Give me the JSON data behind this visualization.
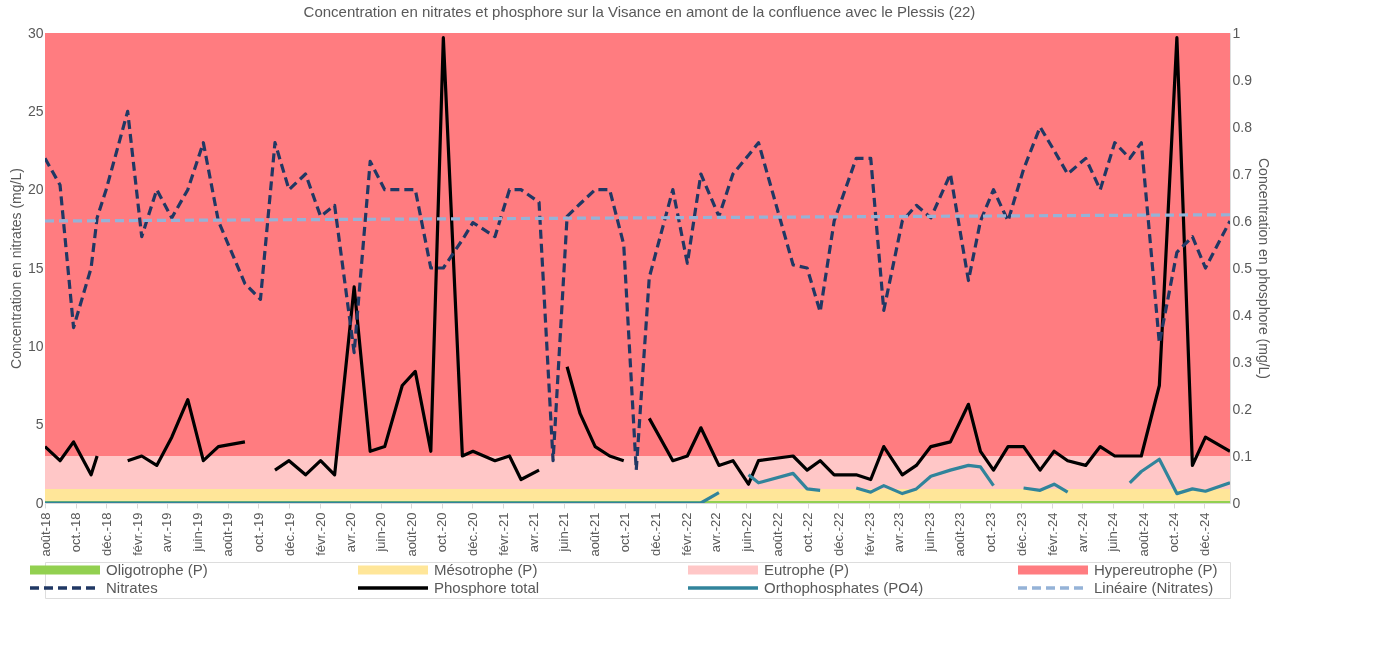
{
  "chart_data": {
    "type": "line",
    "title": "Concentration en nitrates et phosphore sur la Visance en amont de la confluence avec le Plessis (22)",
    "ylabel": "Concentration en nitrates (mg/L)",
    "y2label": "Concentration en phosphore (mg/L)",
    "x": [
      "2018-08-01",
      "2018-08-31",
      "2018-09-27",
      "2018-11-01",
      "2018-11-13",
      "2018-12-01",
      "2019-01-13",
      "2019-02-10",
      "2019-03-12",
      "2019-04-11",
      "2019-05-13",
      "2019-06-13",
      "2019-07-13",
      "2019-09-04",
      "2019-10-05",
      "2019-11-03",
      "2019-12-01",
      "2020-01-03",
      "2020-02-02",
      "2020-03-01",
      "2020-04-09",
      "2020-05-11",
      "2020-06-09",
      "2020-07-14",
      "2020-08-09",
      "2020-09-09",
      "2020-10-04",
      "2020-11-11",
      "2020-12-02",
      "2021-01-15",
      "2021-02-13",
      "2021-03-08",
      "2021-04-13",
      "2021-05-11",
      "2021-06-08",
      "2021-07-04",
      "2021-08-03",
      "2021-09-01",
      "2021-09-29",
      "2021-10-24",
      "2021-11-19",
      "2022-01-05",
      "2022-02-03",
      "2022-03-02",
      "2022-04-07",
      "2022-05-05",
      "2022-06-05",
      "2022-06-25",
      "2022-09-02",
      "2022-09-30",
      "2022-10-26",
      "2022-11-23",
      "2023-01-06",
      "2023-02-04",
      "2023-03-02",
      "2023-04-08",
      "2023-05-06",
      "2023-06-04",
      "2023-07-13",
      "2023-08-18",
      "2023-09-11",
      "2023-10-07",
      "2023-11-05",
      "2023-12-06",
      "2024-01-08",
      "2024-02-05",
      "2024-03-03",
      "2024-04-08",
      "2024-05-07",
      "2024-06-05",
      "2024-07-05",
      "2024-07-28",
      "2024-09-02",
      "2024-10-07",
      "2024-11-07",
      "2024-12-03",
      "2025-01-21"
    ],
    "series": [
      {
        "name": "Nitrates",
        "color": "#203864",
        "line_style": "dashed",
        "values": [
          22,
          20.3,
          11.2,
          15,
          18.2,
          20,
          25,
          17,
          20,
          18.2,
          20,
          23,
          18,
          14,
          13,
          23,
          20,
          21,
          18.3,
          19,
          9.6,
          21.8,
          20,
          20,
          20,
          15,
          15,
          16.8,
          17.9,
          17,
          20,
          20,
          19.2,
          2.7,
          18.3,
          19.1,
          20,
          20,
          16.5,
          2.1,
          14.4,
          20,
          15.3,
          21,
          18.3,
          21,
          22.2,
          23,
          15.2,
          15,
          12.2,
          18,
          22,
          22,
          12.3,
          18,
          19,
          18.2,
          21,
          14.2,
          18,
          20,
          18,
          21.3,
          24,
          22.5,
          21,
          22,
          20,
          23,
          22,
          23,
          10.2,
          16,
          17,
          15,
          18
        ]
      },
      {
        "name": "Phosphore total",
        "color": "#000000",
        "line_style": "solid",
        "axis": "y2",
        "values": [
          0.12,
          0.09,
          0.13,
          0.06,
          0.1,
          null,
          0.09,
          0.1,
          0.08,
          0.14,
          0.22,
          0.09,
          0.12,
          0.13,
          null,
          0.07,
          0.09,
          0.06,
          0.09,
          0.06,
          0.46,
          0.11,
          0.12,
          0.25,
          0.28,
          0.11,
          0.99,
          0.1,
          0.11,
          0.09,
          0.1,
          0.05,
          0.07,
          null,
          0.29,
          0.19,
          0.12,
          0.1,
          0.09,
          null,
          0.18,
          0.09,
          0.1,
          0.16,
          0.08,
          0.09,
          0.04,
          0.09,
          0.1,
          0.07,
          0.09,
          0.06,
          0.06,
          0.05,
          0.12,
          0.06,
          0.08,
          0.12,
          0.13,
          0.21,
          0.11,
          0.07,
          0.12,
          0.12,
          0.07,
          0.11,
          0.09,
          0.08,
          0.12,
          0.1,
          0.1,
          0.1,
          0.25,
          0.99,
          0.08,
          0.14,
          0.11
        ]
      },
      {
        "name": "Orthophosphates (PO4)",
        "color": "#31849b",
        "line_style": "solid",
        "axis": "y2",
        "values": [
          0,
          0,
          0,
          0,
          0,
          0,
          0,
          0,
          0,
          0,
          0,
          0,
          0,
          0,
          0,
          0,
          0,
          0,
          0,
          0,
          0,
          0,
          0,
          0,
          0,
          0,
          0,
          0,
          0,
          0,
          0,
          0,
          0,
          0,
          0,
          0,
          0,
          0,
          0,
          0,
          0,
          0,
          0,
          0,
          0.022,
          null,
          0.06,
          0.043,
          0.063,
          0.03,
          0.027,
          null,
          0.032,
          0.023,
          0.037,
          0.02,
          0.03,
          0.057,
          0.07,
          0.08,
          0.077,
          0.037,
          null,
          0.032,
          0.027,
          0.04,
          0.023,
          null,
          null,
          null,
          0.043,
          0.067,
          0.093,
          0.02,
          0.03,
          0.025,
          0.043
        ]
      },
      {
        "name": "Linéaire (Nitrates)",
        "color": "#95b3d7",
        "line_style": "dashed",
        "x": [
          "2018-08-01",
          "2025-01-21"
        ],
        "values": [
          18.0,
          18.4
        ]
      }
    ],
    "bands": [
      {
        "axis": "y2",
        "from": 0,
        "to": 0.005,
        "label": "Oligotrophe (P)",
        "color": "#92d050"
      },
      {
        "axis": "y2",
        "from": 0.005,
        "to": 0.03,
        "label": "Mésotrophe (P)",
        "color": "#ffe699"
      },
      {
        "axis": "y2",
        "from": 0.03,
        "to": 0.1,
        "label": "Eutrophe (P)",
        "color": "#ffc7c7"
      },
      {
        "axis": "y2",
        "from": 0.1,
        "to": 1,
        "label": "Hypereutrophe (P)",
        "color": "#ff7c80"
      }
    ],
    "xlim": [
      "2018-08-01",
      "2025-01-21"
    ],
    "xticks": [
      {
        "value": "2018-08",
        "label": "août-18"
      },
      {
        "value": "2018-10",
        "label": "oct.-18"
      },
      {
        "value": "2018-12",
        "label": "déc.-18"
      },
      {
        "value": "2019-02",
        "label": "févr.-19"
      },
      {
        "value": "2019-04",
        "label": "avr.-19"
      },
      {
        "value": "2019-06",
        "label": "juin-19"
      },
      {
        "value": "2019-08",
        "label": "août-19"
      },
      {
        "value": "2019-10",
        "label": "oct.-19"
      },
      {
        "value": "2019-12",
        "label": "déc.-19"
      },
      {
        "value": "2020-02",
        "label": "févr.-20"
      },
      {
        "value": "2020-04",
        "label": "avr.-20"
      },
      {
        "value": "2020-06",
        "label": "juin-20"
      },
      {
        "value": "2020-08",
        "label": "août-20"
      },
      {
        "value": "2020-10",
        "label": "oct.-20"
      },
      {
        "value": "2020-12",
        "label": "déc.-20"
      },
      {
        "value": "2021-02",
        "label": "févr.-21"
      },
      {
        "value": "2021-04",
        "label": "avr.-21"
      },
      {
        "value": "2021-06",
        "label": "juin-21"
      },
      {
        "value": "2021-08",
        "label": "août-21"
      },
      {
        "value": "2021-10",
        "label": "oct.-21"
      },
      {
        "value": "2021-12",
        "label": "déc.-21"
      },
      {
        "value": "2022-02",
        "label": "févr.-22"
      },
      {
        "value": "2022-04",
        "label": "avr.-22"
      },
      {
        "value": "2022-06",
        "label": "juin-22"
      },
      {
        "value": "2022-08",
        "label": "août-22"
      },
      {
        "value": "2022-10",
        "label": "oct.-22"
      },
      {
        "value": "2022-12",
        "label": "déc.-22"
      },
      {
        "value": "2023-02",
        "label": "févr.-23"
      },
      {
        "value": "2023-04",
        "label": "avr.-23"
      },
      {
        "value": "2023-06",
        "label": "juin-23"
      },
      {
        "value": "2023-08",
        "label": "août-23"
      },
      {
        "value": "2023-10",
        "label": "oct.-23"
      },
      {
        "value": "2023-12",
        "label": "déc.-23"
      },
      {
        "value": "2024-02",
        "label": "févr.-24"
      },
      {
        "value": "2024-04",
        "label": "avr.-24"
      },
      {
        "value": "2024-06",
        "label": "juin-24"
      },
      {
        "value": "2024-08",
        "label": "août-24"
      },
      {
        "value": "2024-10",
        "label": "oct.-24"
      },
      {
        "value": "2024-12",
        "label": "déc.-24"
      }
    ],
    "ylim": [
      0,
      30
    ],
    "yticks": [
      0,
      5,
      10,
      15,
      20,
      25,
      30
    ],
    "y2lim": [
      0,
      1
    ],
    "y2ticks": [
      0,
      0.1,
      0.2,
      0.3,
      0.4,
      0.5,
      0.6,
      0.7,
      0.8,
      0.9,
      1
    ],
    "legend": "bottom"
  }
}
